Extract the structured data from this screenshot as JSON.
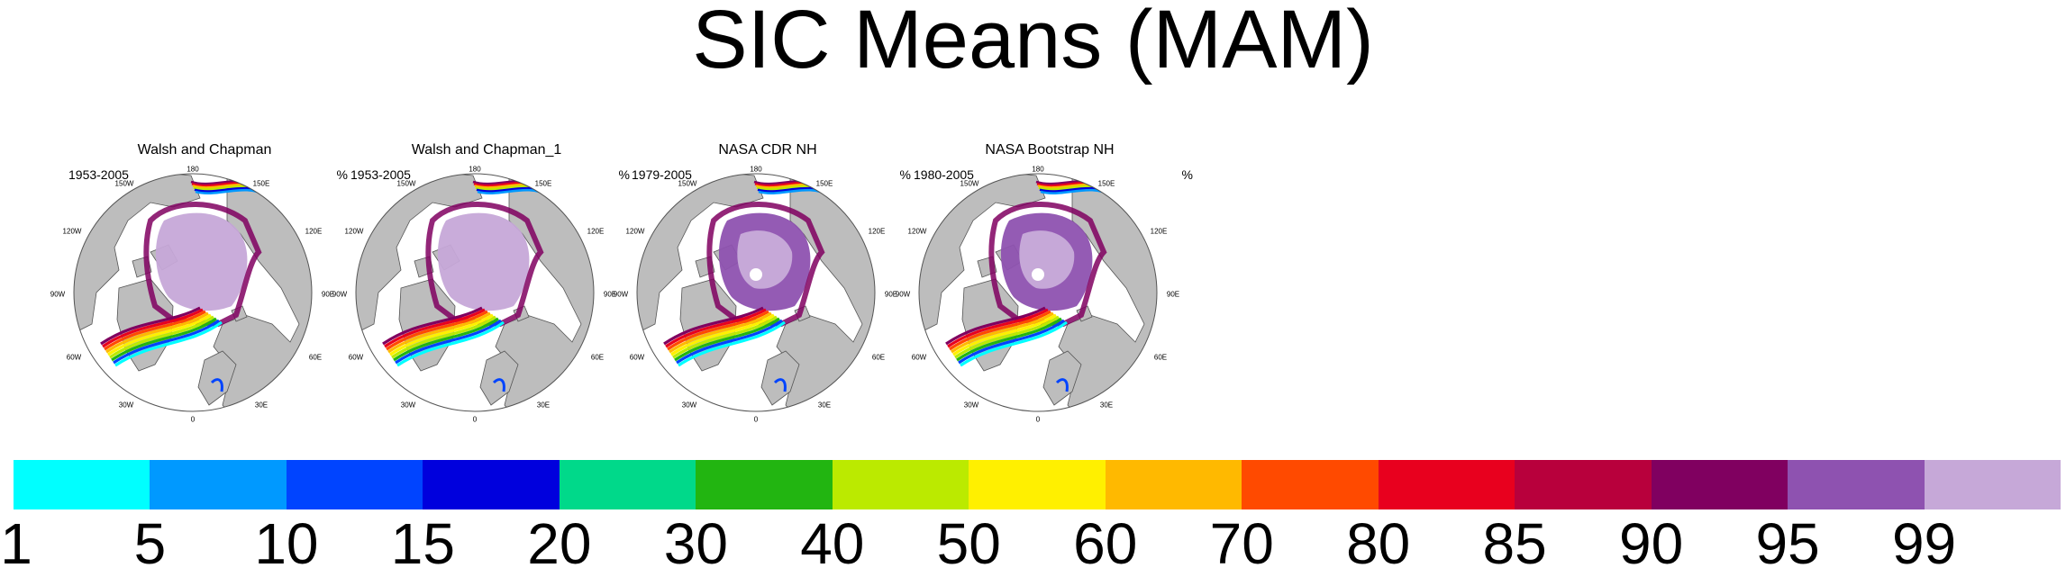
{
  "title": "SIC Means (MAM)",
  "panels": [
    {
      "title": "Walsh and Chapman",
      "period": "1953-2005",
      "unit": "%"
    },
    {
      "title": "Walsh and Chapman_1",
      "period": "1953-2005",
      "unit": "%"
    },
    {
      "title": "NASA CDR NH",
      "period": "1979-2005",
      "unit": "%"
    },
    {
      "title": "NASA Bootstrap NH",
      "period": "1980-2005",
      "unit": "%"
    }
  ],
  "longitude_labels": {
    "top": "180",
    "n150w": "150W",
    "n150e": "150E",
    "n120w": "120W",
    "n120e": "120E",
    "w90": "90W",
    "e90": "90E",
    "s60w": "60W",
    "s60e": "60E",
    "s30w": "30W",
    "s30e": "30E",
    "bottom": "0"
  },
  "colorbar": {
    "colors": [
      "#00ffff",
      "#0099ff",
      "#0044ff",
      "#0000dd",
      "#00d98a",
      "#22b511",
      "#bbea00",
      "#fff000",
      "#ffb900",
      "#ff4a00",
      "#e8001e",
      "#b8003c",
      "#800060",
      "#8e52b0",
      "#c6a8d8"
    ],
    "labels": [
      "1",
      "5",
      "10",
      "15",
      "20",
      "30",
      "40",
      "50",
      "60",
      "70",
      "80",
      "85",
      "90",
      "95",
      "99"
    ]
  },
  "map_colors": {
    "land": "#bdbdbd",
    "ocean": "#ffffff",
    "outline": "#555555"
  }
}
